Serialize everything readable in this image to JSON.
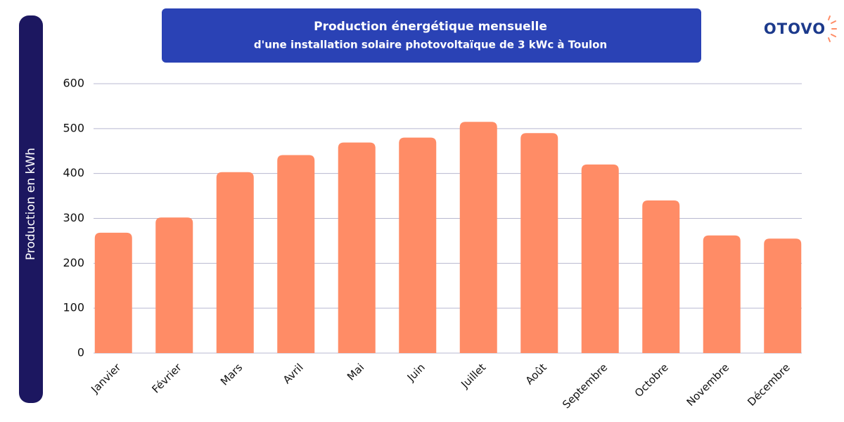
{
  "logo": "OTOVO",
  "chart_data": {
    "type": "bar",
    "title": "Production énergétique mensuelle",
    "subtitle": "d'une installation solaire photovoltaïque de 3 kWc à Toulon",
    "y_label": "Production en kWh",
    "categories": [
      "Janvier",
      "Février",
      "Mars",
      "Avril",
      "Mai",
      "Juin",
      "Juillet",
      "Août",
      "Septembre",
      "Octobre",
      "Novembre",
      "Décembre"
    ],
    "values": [
      268,
      302,
      403,
      441,
      469,
      480,
      515,
      490,
      420,
      340,
      262,
      255
    ],
    "color": "#ff8c66",
    "ylim": [
      0,
      600
    ],
    "yticks": [
      0,
      100,
      200,
      300,
      400,
      500,
      600
    ],
    "grid": true
  }
}
